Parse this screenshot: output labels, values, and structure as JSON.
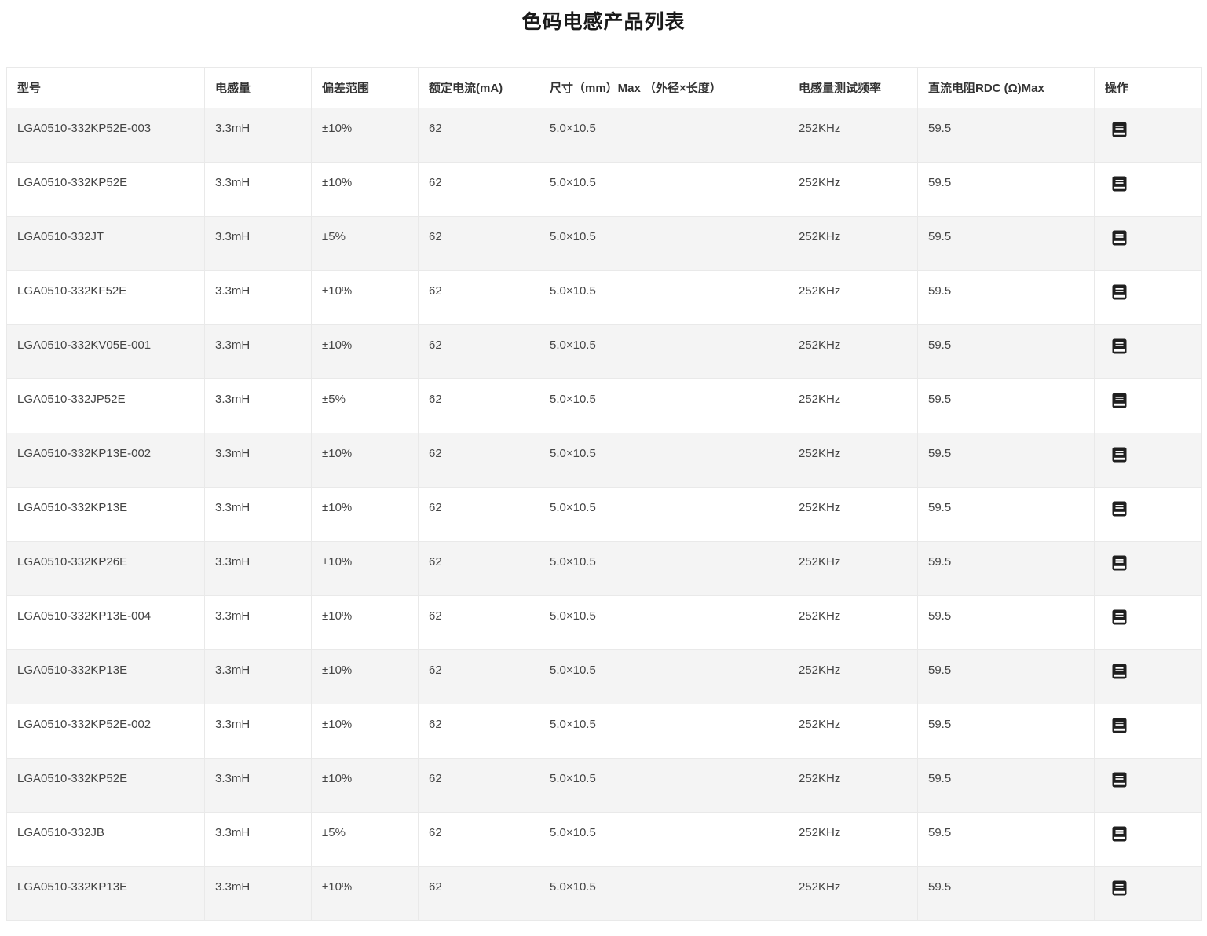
{
  "page_title": "色码电感产品列表",
  "colors": {
    "row_stripe": "#f4f4f4",
    "border": "#e9e9e9",
    "cell_text": "#444444",
    "header_text": "#333333",
    "title_text": "#1a1a1a",
    "icon": "#1f1f1f"
  },
  "table": {
    "columns": [
      {
        "key": "model",
        "label": "型号"
      },
      {
        "key": "inductance",
        "label": "电感量"
      },
      {
        "key": "tolerance",
        "label": "偏差范围"
      },
      {
        "key": "rated_current",
        "label": "额定电流(mA)"
      },
      {
        "key": "size",
        "label": "尺寸（mm）Max （外径×长度）"
      },
      {
        "key": "test_freq",
        "label": "电感量测试频率"
      },
      {
        "key": "rdc",
        "label": "直流电阻RDC (Ω)Max"
      },
      {
        "key": "action",
        "label": "操作"
      }
    ],
    "action_icon": "datasheet-book-icon",
    "rows": [
      {
        "model": "LGA0510-332KP52E-003",
        "inductance": "3.3mH",
        "tolerance": "±10%",
        "rated_current": "62",
        "size": "5.0×10.5",
        "test_freq": "252KHz",
        "rdc": "59.5"
      },
      {
        "model": "LGA0510-332KP52E",
        "inductance": "3.3mH",
        "tolerance": "±10%",
        "rated_current": "62",
        "size": "5.0×10.5",
        "test_freq": "252KHz",
        "rdc": "59.5"
      },
      {
        "model": "LGA0510-332JT",
        "inductance": "3.3mH",
        "tolerance": "±5%",
        "rated_current": "62",
        "size": "5.0×10.5",
        "test_freq": "252KHz",
        "rdc": "59.5"
      },
      {
        "model": "LGA0510-332KF52E",
        "inductance": "3.3mH",
        "tolerance": "±10%",
        "rated_current": "62",
        "size": "5.0×10.5",
        "test_freq": "252KHz",
        "rdc": "59.5"
      },
      {
        "model": "LGA0510-332KV05E-001",
        "inductance": "3.3mH",
        "tolerance": "±10%",
        "rated_current": "62",
        "size": "5.0×10.5",
        "test_freq": "252KHz",
        "rdc": "59.5"
      },
      {
        "model": "LGA0510-332JP52E",
        "inductance": "3.3mH",
        "tolerance": "±5%",
        "rated_current": "62",
        "size": "5.0×10.5",
        "test_freq": "252KHz",
        "rdc": "59.5"
      },
      {
        "model": "LGA0510-332KP13E-002",
        "inductance": "3.3mH",
        "tolerance": "±10%",
        "rated_current": "62",
        "size": "5.0×10.5",
        "test_freq": "252KHz",
        "rdc": "59.5"
      },
      {
        "model": "LGA0510-332KP13E",
        "inductance": "3.3mH",
        "tolerance": "±10%",
        "rated_current": "62",
        "size": "5.0×10.5",
        "test_freq": "252KHz",
        "rdc": "59.5"
      },
      {
        "model": "LGA0510-332KP26E",
        "inductance": "3.3mH",
        "tolerance": "±10%",
        "rated_current": "62",
        "size": "5.0×10.5",
        "test_freq": "252KHz",
        "rdc": "59.5"
      },
      {
        "model": "LGA0510-332KP13E-004",
        "inductance": "3.3mH",
        "tolerance": "±10%",
        "rated_current": "62",
        "size": "5.0×10.5",
        "test_freq": "252KHz",
        "rdc": "59.5"
      },
      {
        "model": "LGA0510-332KP13E",
        "inductance": "3.3mH",
        "tolerance": "±10%",
        "rated_current": "62",
        "size": "5.0×10.5",
        "test_freq": "252KHz",
        "rdc": "59.5"
      },
      {
        "model": "LGA0510-332KP52E-002",
        "inductance": "3.3mH",
        "tolerance": "±10%",
        "rated_current": "62",
        "size": "5.0×10.5",
        "test_freq": "252KHz",
        "rdc": "59.5"
      },
      {
        "model": "LGA0510-332KP52E",
        "inductance": "3.3mH",
        "tolerance": "±10%",
        "rated_current": "62",
        "size": "5.0×10.5",
        "test_freq": "252KHz",
        "rdc": "59.5"
      },
      {
        "model": "LGA0510-332JB",
        "inductance": "3.3mH",
        "tolerance": "±5%",
        "rated_current": "62",
        "size": "5.0×10.5",
        "test_freq": "252KHz",
        "rdc": "59.5"
      },
      {
        "model": "LGA0510-332KP13E",
        "inductance": "3.3mH",
        "tolerance": "±10%",
        "rated_current": "62",
        "size": "5.0×10.5",
        "test_freq": "252KHz",
        "rdc": "59.5"
      }
    ]
  }
}
